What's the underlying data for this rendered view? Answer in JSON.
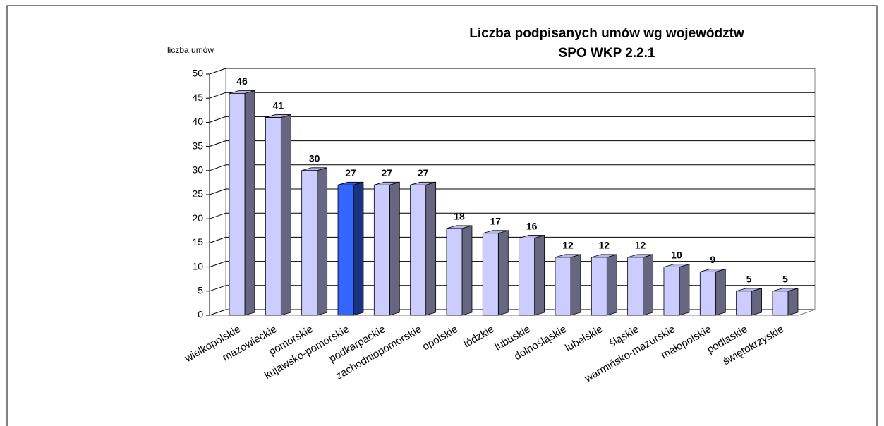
{
  "chart_data": {
    "type": "bar3d",
    "title": [
      "Liczba podpisanych umów wg województw",
      "SPO WKP 2.2.1"
    ],
    "ylabel": "liczba umów",
    "categories": [
      "wielkopolskie",
      "mazowieckie",
      "pomorskie",
      "kujawsko-pomorskie",
      "podkarpackie",
      "zachodniopomorskie",
      "opolskie",
      "łódzkie",
      "lubuskie",
      "dolnośląskie",
      "lubelskie",
      "śląskie",
      "warmińsko-mazurskie",
      "małopolskie",
      "podlaskie",
      "świętokrzyskie"
    ],
    "values": [
      46,
      41,
      30,
      27,
      27,
      27,
      18,
      17,
      16,
      12,
      12,
      12,
      10,
      9,
      5,
      5
    ],
    "colors": [
      "#ccccff",
      "#ccccff",
      "#ccccff",
      "#3366ff",
      "#ccccff",
      "#ccccff",
      "#ccccff",
      "#ccccff",
      "#ccccff",
      "#ccccff",
      "#ccccff",
      "#ccccff",
      "#ccccff",
      "#ccccff",
      "#ccccff",
      "#ccccff"
    ],
    "ylim": [
      0,
      50
    ],
    "yticks": [
      0,
      5,
      10,
      15,
      20,
      25,
      30,
      35,
      40,
      45,
      50
    ],
    "grid": true
  }
}
